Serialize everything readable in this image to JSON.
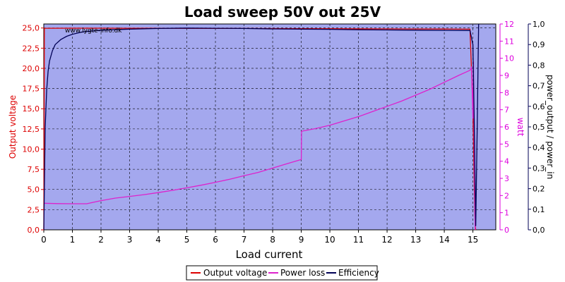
{
  "chart_data": {
    "type": "line",
    "title": "Load sweep 50V out 25V",
    "watermark": "www.lygte-info.dk",
    "xlabel": "Load current",
    "xlim": [
      0,
      15.8
    ],
    "x_ticks": [
      "0",
      "1",
      "2",
      "3",
      "4",
      "5",
      "6",
      "7",
      "8",
      "9",
      "10",
      "11",
      "12",
      "13",
      "14",
      "15"
    ],
    "y_left": {
      "label": "Output voltage",
      "color": "#dd0000",
      "lim": [
        0,
        25.5
      ],
      "ticks": [
        "0,0",
        "2,5",
        "5,0",
        "7,5",
        "10,0",
        "12,5",
        "15,0",
        "17,5",
        "20,0",
        "22,5",
        "25,0"
      ]
    },
    "y_right1": {
      "label": "watt",
      "color": "#dd00dd",
      "lim": [
        0,
        12
      ],
      "ticks": [
        "0",
        "1",
        "2",
        "3",
        "4",
        "5",
        "6",
        "7",
        "8",
        "9",
        "10",
        "11",
        "12"
      ]
    },
    "y_right2": {
      "label": "power_output / power_in",
      "color": "#000055",
      "lim": [
        0,
        1
      ],
      "ticks": [
        "0,0",
        "0,1",
        "0,2",
        "0,3",
        "0,4",
        "0,5",
        "0,6",
        "0,7",
        "0,8",
        "0,9",
        "1,0"
      ]
    },
    "grid": true,
    "background": "#a4a8ee",
    "legend_position": "bottom",
    "series": [
      {
        "name": "Output voltage",
        "color": "#dd0000",
        "axis": "left",
        "x": [
          0,
          0.02,
          0.05,
          1,
          2,
          3,
          4,
          5,
          6,
          7,
          8,
          9,
          10,
          11,
          12,
          13,
          14,
          14.9,
          15.0,
          15.05,
          15.08,
          15.1
        ],
        "y": [
          0,
          24.95,
          24.97,
          24.98,
          24.98,
          24.97,
          24.97,
          24.96,
          24.95,
          24.94,
          24.93,
          24.92,
          24.91,
          24.9,
          24.89,
          24.88,
          24.87,
          24.85,
          15,
          5,
          0.5,
          0
        ]
      },
      {
        "name": "Power loss",
        "color": "#dd22cc",
        "axis": "right1",
        "x": [
          0,
          0.5,
          1,
          1.5,
          2,
          2.5,
          3,
          3.5,
          4,
          4.5,
          5,
          5.5,
          6,
          6.5,
          7,
          7.5,
          8,
          8.5,
          9,
          9.01,
          9.5,
          10,
          10.5,
          11,
          11.5,
          12,
          12.5,
          13,
          13.5,
          14,
          14.5,
          14.9,
          14.95,
          15.0,
          15.02,
          15.05,
          15.08
        ],
        "y": [
          1.55,
          1.53,
          1.52,
          1.52,
          1.7,
          1.85,
          1.95,
          2.05,
          2.17,
          2.3,
          2.45,
          2.6,
          2.77,
          2.95,
          3.15,
          3.35,
          3.6,
          3.85,
          4.1,
          5.75,
          5.9,
          6.1,
          6.35,
          6.6,
          6.9,
          7.2,
          7.5,
          7.85,
          8.2,
          8.6,
          9.0,
          9.3,
          9.5,
          6.5,
          9.8,
          4,
          0
        ]
      },
      {
        "name": "Efficiency",
        "color": "#000055",
        "axis": "right2",
        "x": [
          0,
          0.05,
          0.1,
          0.15,
          0.2,
          0.3,
          0.4,
          0.6,
          0.8,
          1,
          1.3,
          1.6,
          2,
          3,
          4,
          5,
          6,
          7,
          8,
          9,
          10,
          11,
          12,
          13,
          14,
          14.9,
          15.0,
          15.05,
          15.1,
          15.15,
          15.2
        ],
        "y": [
          0,
          0.5,
          0.68,
          0.77,
          0.82,
          0.87,
          0.9,
          0.925,
          0.94,
          0.95,
          0.96,
          0.965,
          0.97,
          0.975,
          0.978,
          0.98,
          0.979,
          0.978,
          0.976,
          0.975,
          0.974,
          0.972,
          0.971,
          0.97,
          0.969,
          0.968,
          0.9,
          0.5,
          0.02,
          0.5,
          1.0
        ]
      }
    ]
  }
}
